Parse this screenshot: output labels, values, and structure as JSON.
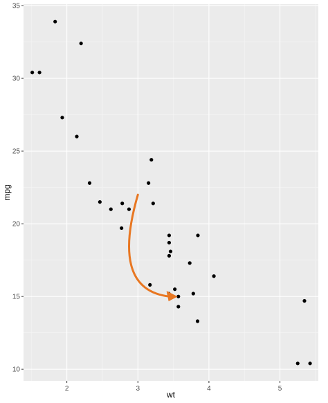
{
  "chart_data": {
    "type": "scatter",
    "xlabel": "wt",
    "ylabel": "mpg",
    "xlim": [
      1.39,
      5.54
    ],
    "ylim": [
      9.2,
      35.1
    ],
    "x_ticks": [
      2,
      3,
      4,
      5
    ],
    "y_ticks": [
      10,
      15,
      20,
      25,
      30,
      35
    ],
    "grid": true,
    "point_color": "#000000",
    "panel_background": "#ebebeb",
    "points": [
      {
        "x": 2.62,
        "y": 21.0
      },
      {
        "x": 2.875,
        "y": 21.0
      },
      {
        "x": 2.32,
        "y": 22.8
      },
      {
        "x": 3.215,
        "y": 21.4
      },
      {
        "x": 3.44,
        "y": 18.7
      },
      {
        "x": 3.46,
        "y": 18.1
      },
      {
        "x": 3.57,
        "y": 14.3
      },
      {
        "x": 3.19,
        "y": 24.4
      },
      {
        "x": 3.15,
        "y": 22.8
      },
      {
        "x": 3.44,
        "y": 19.2
      },
      {
        "x": 3.44,
        "y": 17.8
      },
      {
        "x": 4.07,
        "y": 16.4
      },
      {
        "x": 3.73,
        "y": 17.3
      },
      {
        "x": 3.78,
        "y": 15.2
      },
      {
        "x": 5.25,
        "y": 10.4
      },
      {
        "x": 5.424,
        "y": 10.4
      },
      {
        "x": 5.345,
        "y": 14.7
      },
      {
        "x": 2.2,
        "y": 32.4
      },
      {
        "x": 1.615,
        "y": 30.4
      },
      {
        "x": 1.835,
        "y": 33.9
      },
      {
        "x": 2.465,
        "y": 21.5
      },
      {
        "x": 3.52,
        "y": 15.5
      },
      {
        "x": 3.435,
        "y": 15.2
      },
      {
        "x": 3.84,
        "y": 13.3
      },
      {
        "x": 3.845,
        "y": 19.2
      },
      {
        "x": 1.935,
        "y": 27.3
      },
      {
        "x": 2.14,
        "y": 26.0
      },
      {
        "x": 1.513,
        "y": 30.4
      },
      {
        "x": 3.17,
        "y": 15.8
      },
      {
        "x": 2.77,
        "y": 19.7
      },
      {
        "x": 3.57,
        "y": 15.0
      },
      {
        "x": 2.78,
        "y": 21.4
      }
    ],
    "annotation": {
      "type": "curved-arrow",
      "color": "#e87722",
      "from": {
        "x": 3.0,
        "y": 22.0
      },
      "to": {
        "x": 3.52,
        "y": 15.0
      }
    }
  }
}
